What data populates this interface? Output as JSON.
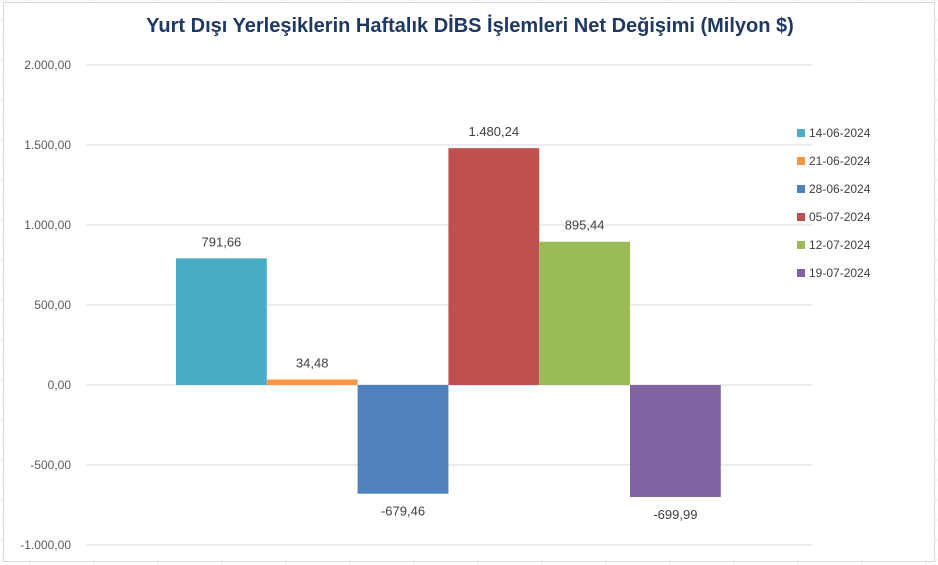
{
  "chart_data": {
    "type": "bar",
    "title": "Yurt Dışı Yerleşiklerin Haftalık DİBS İşlemleri Net Değişimi (Milyon $)",
    "xlabel": "",
    "ylabel": "",
    "ylim": [
      -1000,
      2000
    ],
    "y_ticks": [
      2000,
      1500,
      1000,
      500,
      0,
      -500,
      -1000
    ],
    "y_tick_labels": [
      "2.000,00",
      "1.500,00",
      "1.000,00",
      "500,00",
      "0,00",
      "-500,00",
      "-1.000,00"
    ],
    "grid": true,
    "legend_position": "right",
    "series": [
      {
        "name": "14-06-2024",
        "value": 791.66,
        "label": "791,66",
        "color": "#4BACC6"
      },
      {
        "name": "21-06-2024",
        "value": 34.48,
        "label": "34,48",
        "color": "#F79646"
      },
      {
        "name": "28-06-2024",
        "value": -679.46,
        "label": "-679,46",
        "color": "#4F81BD"
      },
      {
        "name": "05-07-2024",
        "value": 1480.24,
        "label": "1.480,24",
        "color": "#C0504D"
      },
      {
        "name": "12-07-2024",
        "value": 895.44,
        "label": "895,44",
        "color": "#9BBB59"
      },
      {
        "name": "19-07-2024",
        "value": -699.99,
        "label": "-699,99",
        "color": "#8064A2"
      }
    ]
  }
}
